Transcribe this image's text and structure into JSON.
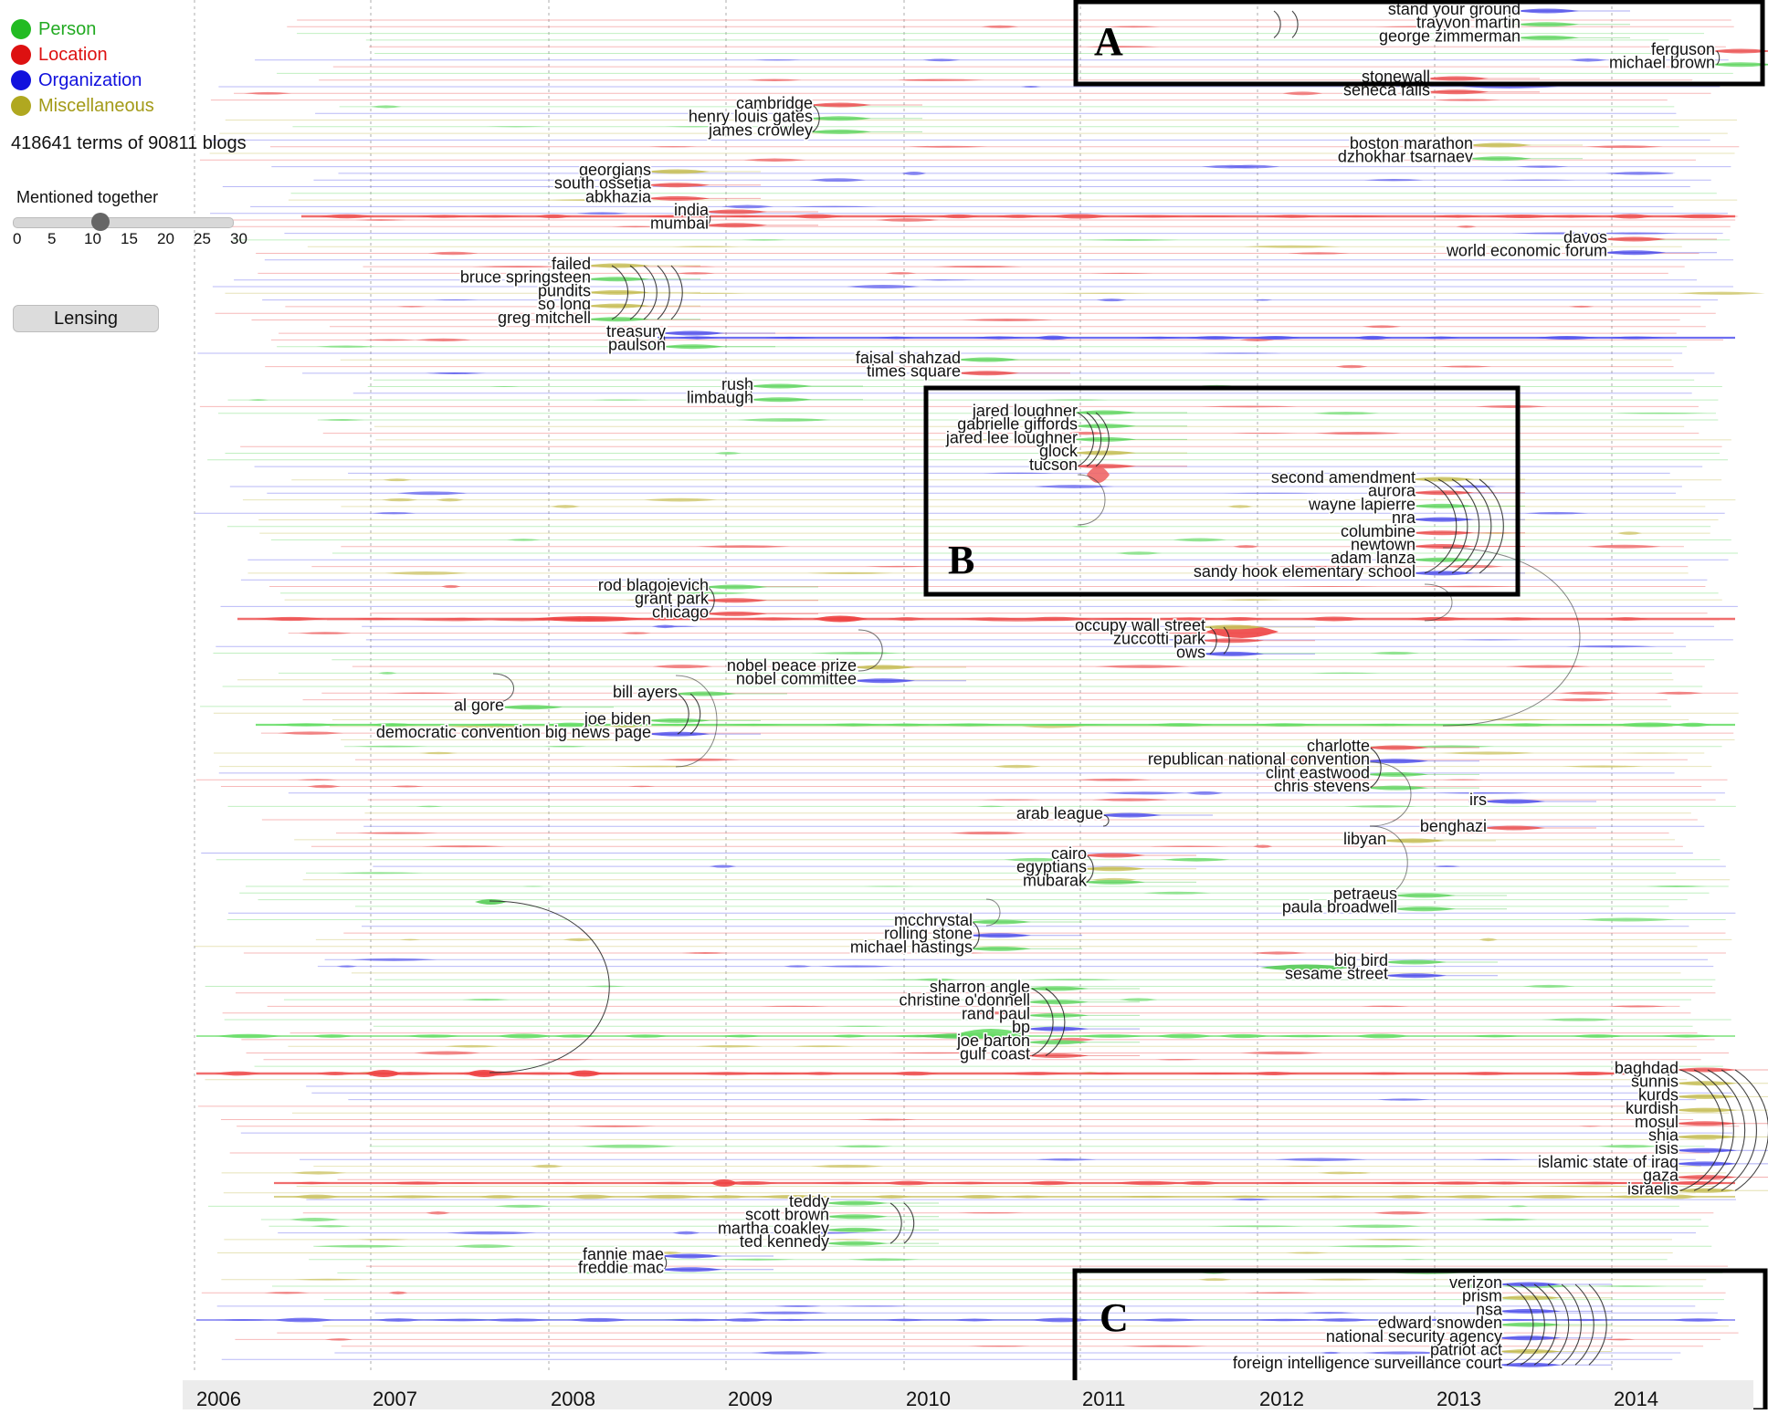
{
  "legend": [
    {
      "label": "Person",
      "color": "#22bb22"
    },
    {
      "label": "Location",
      "color": "#dd1111"
    },
    {
      "label": "Organization",
      "color": "#1111dd"
    },
    {
      "label": "Miscellaneous",
      "color": "#b0a820"
    }
  ],
  "stats_text": "418641 terms of 90811 blogs",
  "slider": {
    "label": "Mentioned together",
    "ticks": [
      "0",
      "5",
      "10",
      "15",
      "20",
      "25",
      "30"
    ],
    "value": 12
  },
  "lensing_label": "Lensing",
  "years": [
    "2006",
    "2007",
    "2008",
    "2009",
    "2010",
    "2011",
    "2012",
    "2013",
    "2014"
  ],
  "boxes": [
    "A",
    "B",
    "C"
  ],
  "groups": [
    {
      "name": "trayvon",
      "terms": [
        {
          "text": "stand your ground",
          "category": "Organization"
        },
        {
          "text": "trayvon martin",
          "category": "Person"
        },
        {
          "text": "george zimmerman",
          "category": "Person"
        }
      ]
    },
    {
      "name": "ferguson",
      "terms": [
        {
          "text": "ferguson",
          "category": "Location"
        },
        {
          "text": "michael brown",
          "category": "Person"
        }
      ]
    },
    {
      "name": "stonewall",
      "terms": [
        {
          "text": "stonewall",
          "category": "Location"
        },
        {
          "text": "seneca falls",
          "category": "Location"
        }
      ]
    },
    {
      "name": "cambridge",
      "terms": [
        {
          "text": "cambridge",
          "category": "Location"
        },
        {
          "text": "henry louis gates",
          "category": "Person"
        },
        {
          "text": "james crowley",
          "category": "Person"
        }
      ]
    },
    {
      "name": "boston",
      "terms": [
        {
          "text": "boston marathon",
          "category": "Miscellaneous"
        },
        {
          "text": "dzhokhar tsarnaev",
          "category": "Person"
        }
      ]
    },
    {
      "name": "georgia",
      "terms": [
        {
          "text": "georgians",
          "category": "Miscellaneous"
        },
        {
          "text": "south ossetia",
          "category": "Location"
        },
        {
          "text": "abkhazia",
          "category": "Location"
        }
      ]
    },
    {
      "name": "india",
      "terms": [
        {
          "text": "india",
          "category": "Location"
        },
        {
          "text": "mumbai",
          "category": "Location"
        }
      ]
    },
    {
      "name": "davos",
      "terms": [
        {
          "text": "davos",
          "category": "Location"
        },
        {
          "text": "world economic forum",
          "category": "Organization"
        }
      ]
    },
    {
      "name": "springsteen",
      "terms": [
        {
          "text": "failed",
          "category": "Miscellaneous"
        },
        {
          "text": "bruce springsteen",
          "category": "Person"
        },
        {
          "text": "pundits",
          "category": "Miscellaneous"
        },
        {
          "text": "so long",
          "category": "Miscellaneous"
        },
        {
          "text": "greg mitchell",
          "category": "Person"
        }
      ]
    },
    {
      "name": "treasury",
      "terms": [
        {
          "text": "treasury",
          "category": "Organization"
        },
        {
          "text": "paulson",
          "category": "Person"
        }
      ]
    },
    {
      "name": "shahzad",
      "terms": [
        {
          "text": "faisal shahzad",
          "category": "Person"
        },
        {
          "text": "times square",
          "category": "Location"
        }
      ]
    },
    {
      "name": "limbaugh",
      "terms": [
        {
          "text": "rush",
          "category": "Person"
        },
        {
          "text": "limbaugh",
          "category": "Person"
        }
      ]
    },
    {
      "name": "tucson",
      "terms": [
        {
          "text": "jared loughner",
          "category": "Person"
        },
        {
          "text": "gabrielle giffords",
          "category": "Person"
        },
        {
          "text": "jared lee loughner",
          "category": "Person"
        },
        {
          "text": "glock",
          "category": "Miscellaneous"
        },
        {
          "text": "tucson",
          "category": "Location"
        }
      ]
    },
    {
      "name": "newtown",
      "terms": [
        {
          "text": "second amendment",
          "category": "Miscellaneous"
        },
        {
          "text": "aurora",
          "category": "Location"
        },
        {
          "text": "wayne lapierre",
          "category": "Person"
        },
        {
          "text": "nra",
          "category": "Organization"
        },
        {
          "text": "columbine",
          "category": "Location"
        },
        {
          "text": "newtown",
          "category": "Location"
        },
        {
          "text": "adam lanza",
          "category": "Person"
        },
        {
          "text": "sandy hook elementary school",
          "category": "Organization"
        }
      ]
    },
    {
      "name": "chicago",
      "terms": [
        {
          "text": "rod blagojevich",
          "category": "Person"
        },
        {
          "text": "grant park",
          "category": "Location"
        },
        {
          "text": "chicago",
          "category": "Location"
        }
      ]
    },
    {
      "name": "occupy",
      "terms": [
        {
          "text": "occupy wall street",
          "category": "Miscellaneous"
        },
        {
          "text": "zuccotti park",
          "category": "Location"
        },
        {
          "text": "ows",
          "category": "Organization"
        }
      ]
    },
    {
      "name": "nobel",
      "terms": [
        {
          "text": "nobel peace prize",
          "category": "Miscellaneous"
        },
        {
          "text": "nobel committee",
          "category": "Organization"
        }
      ]
    },
    {
      "name": "biden",
      "terms": [
        {
          "text": "bill ayers",
          "category": "Person"
        },
        {
          "text": "al gore",
          "category": "Person"
        },
        {
          "text": "joe biden",
          "category": "Person"
        },
        {
          "text": "democratic convention big news page",
          "category": "Organization"
        }
      ]
    },
    {
      "name": "charlotte",
      "terms": [
        {
          "text": "charlotte",
          "category": "Location"
        },
        {
          "text": "republican national convention",
          "category": "Organization"
        },
        {
          "text": "clint eastwood",
          "category": "Person"
        },
        {
          "text": "chris stevens",
          "category": "Person"
        }
      ]
    },
    {
      "name": "arab",
      "terms": [
        {
          "text": "arab league",
          "category": "Organization"
        }
      ]
    },
    {
      "name": "benghazi",
      "terms": [
        {
          "text": "irs",
          "category": "Organization"
        },
        {
          "text": "libyan",
          "category": "Miscellaneous"
        },
        {
          "text": "benghazi",
          "category": "Location"
        }
      ]
    },
    {
      "name": "cairo",
      "terms": [
        {
          "text": "cairo",
          "category": "Location"
        },
        {
          "text": "egyptians",
          "category": "Miscellaneous"
        },
        {
          "text": "mubarak",
          "category": "Person"
        }
      ]
    },
    {
      "name": "petraeus",
      "terms": [
        {
          "text": "petraeus",
          "category": "Person"
        },
        {
          "text": "paula broadwell",
          "category": "Person"
        }
      ]
    },
    {
      "name": "mcchrystal",
      "terms": [
        {
          "text": "mcchrystal",
          "category": "Person"
        },
        {
          "text": "rolling stone",
          "category": "Organization"
        },
        {
          "text": "michael hastings",
          "category": "Person"
        }
      ]
    },
    {
      "name": "bigbird",
      "terms": [
        {
          "text": "big bird",
          "category": "Person"
        },
        {
          "text": "sesame street",
          "category": "Organization"
        }
      ]
    },
    {
      "name": "tea",
      "terms": [
        {
          "text": "sharron angle",
          "category": "Person"
        },
        {
          "text": "christine o'donnell",
          "category": "Person"
        },
        {
          "text": "rand paul",
          "category": "Person"
        },
        {
          "text": "bp",
          "category": "Organization"
        },
        {
          "text": "joe barton",
          "category": "Person"
        },
        {
          "text": "gulf coast",
          "category": "Location"
        }
      ]
    },
    {
      "name": "iraq",
      "terms": [
        {
          "text": "baghdad",
          "category": "Location"
        },
        {
          "text": "sunnis",
          "category": "Miscellaneous"
        },
        {
          "text": "kurds",
          "category": "Miscellaneous"
        },
        {
          "text": "kurdish",
          "category": "Miscellaneous"
        },
        {
          "text": "mosul",
          "category": "Location"
        },
        {
          "text": "shia",
          "category": "Miscellaneous"
        },
        {
          "text": "isis",
          "category": "Organization"
        },
        {
          "text": "islamic state of iraq",
          "category": "Organization"
        },
        {
          "text": "gaza",
          "category": "Location"
        },
        {
          "text": "israelis",
          "category": "Miscellaneous"
        }
      ]
    },
    {
      "name": "kennedy",
      "terms": [
        {
          "text": "teddy",
          "category": "Person"
        },
        {
          "text": "scott brown",
          "category": "Person"
        },
        {
          "text": "martha coakley",
          "category": "Person"
        },
        {
          "text": "ted kennedy",
          "category": "Person"
        }
      ]
    },
    {
      "name": "fannie",
      "terms": [
        {
          "text": "fannie mae",
          "category": "Organization"
        },
        {
          "text": "freddie mac",
          "category": "Organization"
        }
      ]
    },
    {
      "name": "nsa",
      "terms": [
        {
          "text": "verizon",
          "category": "Organization"
        },
        {
          "text": "prism",
          "category": "Miscellaneous"
        },
        {
          "text": "nsa",
          "category": "Organization"
        },
        {
          "text": "edward snowden",
          "category": "Person"
        },
        {
          "text": "national security agency",
          "category": "Organization"
        },
        {
          "text": "patriot act",
          "category": "Miscellaneous"
        },
        {
          "text": "foreign intelligence surveillance court",
          "category": "Organization"
        }
      ]
    }
  ]
}
